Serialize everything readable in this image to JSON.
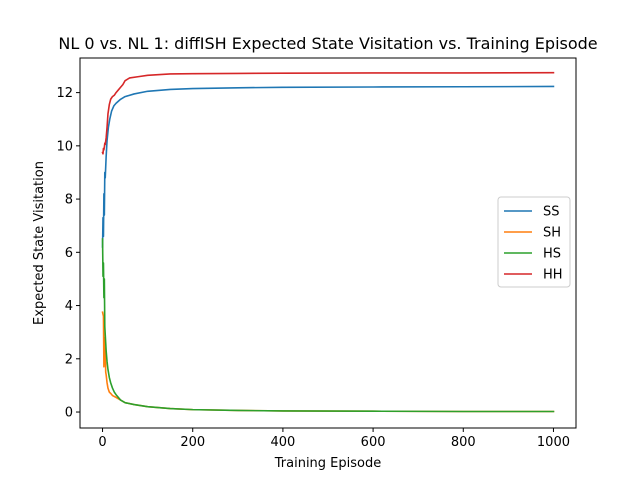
{
  "chart_data": {
    "type": "line",
    "title": "NL 0 vs. NL 1: diffISH Expected State Visitation vs. Training Episode",
    "xlabel": "Training Episode",
    "ylabel": "Expected State Visitation",
    "xlim": [
      -50,
      1050
    ],
    "ylim": [
      -0.6,
      13.3
    ],
    "xticks": [
      0,
      200,
      400,
      600,
      800,
      1000
    ],
    "yticks": [
      0,
      2,
      4,
      6,
      8,
      10,
      12
    ],
    "grid": false,
    "legend": "center-right",
    "series": [
      {
        "name": "SS",
        "color": "#1f77b4",
        "x": [
          0,
          1,
          2,
          3,
          4,
          5,
          6,
          8,
          10,
          13,
          16,
          20,
          25,
          30,
          40,
          50,
          70,
          100,
          150,
          200,
          300,
          400,
          600,
          800,
          1000
        ],
        "y": [
          6.2,
          7.3,
          6.6,
          8.2,
          7.4,
          9.0,
          8.8,
          9.6,
          10.2,
          10.7,
          11.0,
          11.3,
          11.5,
          11.6,
          11.75,
          11.85,
          11.95,
          12.05,
          12.12,
          12.15,
          12.18,
          12.2,
          12.21,
          12.22,
          12.23
        ]
      },
      {
        "name": "SH",
        "color": "#ff7f0e",
        "x": [
          0,
          2,
          3,
          4,
          5,
          6,
          7,
          8,
          10,
          12,
          15,
          18,
          22,
          30,
          40,
          50,
          70,
          100,
          150,
          200,
          300,
          400,
          600,
          800,
          1000
        ],
        "y": [
          3.75,
          3.6,
          1.7,
          2.8,
          1.8,
          2.4,
          1.5,
          1.4,
          1.1,
          0.9,
          0.75,
          0.7,
          0.62,
          0.55,
          0.45,
          0.35,
          0.28,
          0.2,
          0.13,
          0.09,
          0.06,
          0.04,
          0.03,
          0.02,
          0.02
        ]
      },
      {
        "name": "HS",
        "color": "#2ca02c",
        "x": [
          0,
          1,
          2,
          3,
          4,
          5,
          6,
          7,
          8,
          10,
          12,
          15,
          18,
          22,
          26,
          30,
          40,
          50,
          70,
          100,
          150,
          200,
          300,
          400,
          600,
          800,
          1000
        ],
        "y": [
          6.5,
          5.1,
          5.6,
          4.3,
          5.0,
          3.2,
          2.9,
          2.6,
          2.3,
          1.9,
          1.6,
          1.3,
          1.1,
          0.9,
          0.75,
          0.65,
          0.45,
          0.35,
          0.28,
          0.2,
          0.13,
          0.09,
          0.06,
          0.04,
          0.03,
          0.02,
          0.02
        ]
      },
      {
        "name": "HH",
        "color": "#d62728",
        "x": [
          0,
          1,
          2,
          3,
          4,
          5,
          6,
          8,
          10,
          12,
          15,
          18,
          22,
          26,
          30,
          35,
          40,
          45,
          50,
          60,
          80,
          100,
          150,
          200,
          300,
          400,
          600,
          800,
          1000
        ],
        "y": [
          9.75,
          9.7,
          9.9,
          9.85,
          9.95,
          10.1,
          10.05,
          10.3,
          10.7,
          11.2,
          11.55,
          11.75,
          11.85,
          11.9,
          12.0,
          12.1,
          12.2,
          12.3,
          12.45,
          12.55,
          12.6,
          12.65,
          12.7,
          12.71,
          12.72,
          12.73,
          12.74,
          12.74,
          12.75
        ]
      }
    ]
  }
}
